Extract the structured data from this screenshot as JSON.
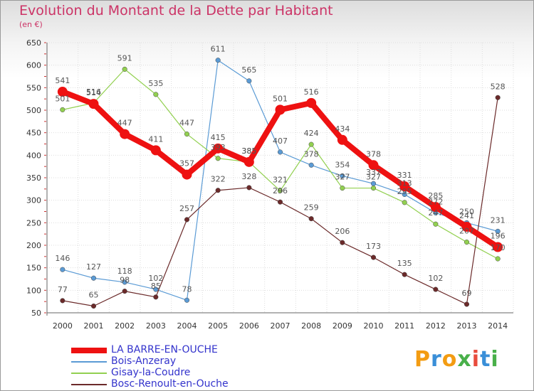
{
  "header": {
    "title": "Evolution du Montant de la Dette par Habitant",
    "subtitle": "(en €)"
  },
  "brand": {
    "text": "Proxiti",
    "letter_colors": [
      "#f39c12",
      "#3a8fd8",
      "#f39c12",
      "#49b04a",
      "#e84c3d",
      "#3a8fd8",
      "#49b04a"
    ]
  },
  "chart_data": {
    "type": "line",
    "title": "Evolution du Montant de la Dette par Habitant",
    "subtitle": "(en €)",
    "xlabel": "",
    "ylabel": "",
    "x": [
      "2000",
      "2001",
      "2002",
      "2003",
      "2004",
      "2005",
      "2006",
      "2007",
      "2008",
      "2009",
      "2010",
      "2011",
      "2012",
      "2013",
      "2014"
    ],
    "ylim": [
      50,
      650
    ],
    "yticks": [
      50,
      100,
      150,
      200,
      250,
      300,
      350,
      400,
      450,
      500,
      550,
      600,
      650
    ],
    "grid": true,
    "legend": "bottom-left",
    "series": [
      {
        "name": "Bois-Anzeray",
        "color": "#5b9bd5",
        "values": [
          146,
          127,
          118,
          102,
          78,
          611,
          565,
          407,
          378,
          354,
          337,
          313,
          272,
          250,
          231
        ],
        "labels": [
          "146",
          "127",
          "118",
          "102",
          "78",
          "611",
          "565",
          "407",
          "378",
          "354",
          "337",
          "313",
          "272",
          "250",
          "231"
        ]
      },
      {
        "name": "Gisay-la-Coudre",
        "color": "#92d050",
        "values": [
          501,
          516,
          591,
          535,
          447,
          393,
          385,
          321,
          424,
          327,
          327,
          295,
          247,
          207,
          170
        ],
        "labels": [
          "501",
          "516",
          "591",
          "535",
          "447",
          "393",
          "385",
          "321",
          "424",
          "327",
          "327",
          "295",
          "247",
          "207",
          "170"
        ]
      },
      {
        "name": "Bosc-Renoult-en-Ouche",
        "color": "#6b2a2a",
        "values": [
          77,
          65,
          98,
          85,
          257,
          322,
          328,
          296,
          259,
          206,
          173,
          135,
          102,
          69,
          528
        ],
        "labels": [
          "77",
          "65",
          "98",
          "85",
          "257",
          "322",
          "328",
          "296",
          "259",
          "206",
          "173",
          "135",
          "102",
          "69",
          "528"
        ]
      },
      {
        "name": "LA BARRE-EN-OUCHE",
        "color": "#ee1111",
        "values": [
          541,
          514,
          447,
          411,
          357,
          415,
          385,
          501,
          516,
          434,
          378,
          331,
          285,
          241,
          196
        ],
        "labels": [
          "541",
          "514",
          "447",
          "411",
          "357",
          "415",
          "385",
          "501",
          "516",
          "434",
          "378",
          "331",
          "285",
          "241",
          "196"
        ]
      }
    ],
    "legend_order": [
      "LA BARRE-EN-OUCHE",
      "Bois-Anzeray",
      "Gisay-la-Coudre",
      "Bosc-Renoult-en-Ouche"
    ]
  }
}
